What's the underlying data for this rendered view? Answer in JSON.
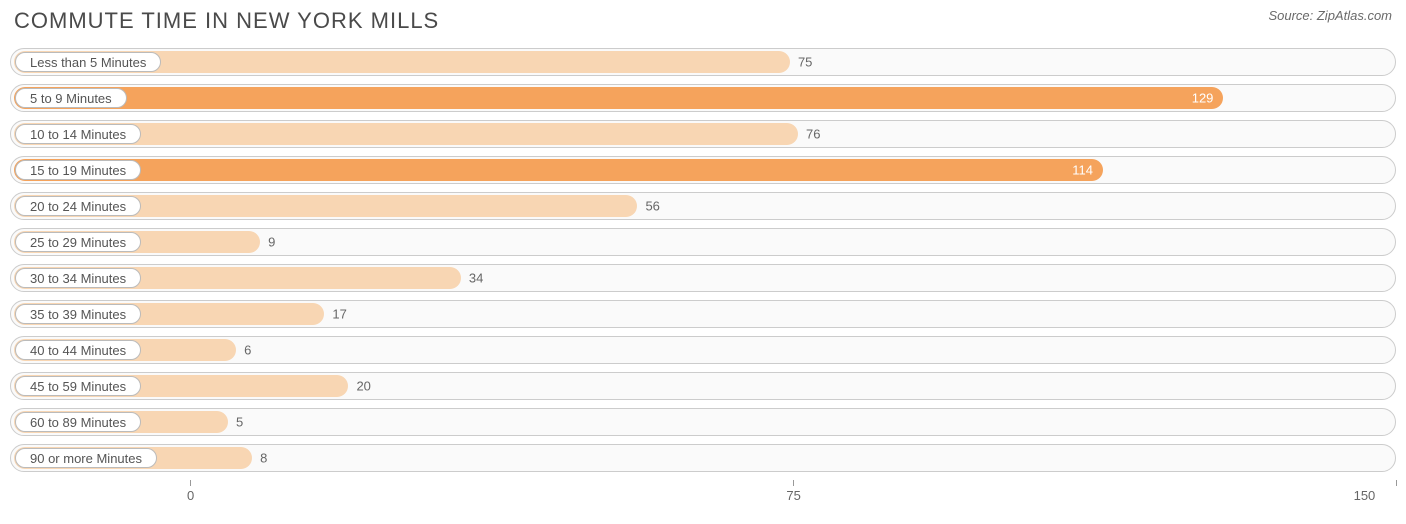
{
  "title": "COMMUTE TIME IN NEW YORK MILLS",
  "source": "Source: ZipAtlas.com",
  "chart": {
    "type": "bar-horizontal",
    "background_color": "#ffffff",
    "row_border_color": "#cccccc",
    "row_background": "#fafafa",
    "bar_color_light": "#f8d6b3",
    "bar_color_dark": "#f5a35c",
    "pill_background": "#ffffff",
    "pill_border": "#bbbbbb",
    "text_color": "#666666",
    "value_label_inside_color": "#ffffff",
    "title_color": "#4a4a4a",
    "title_fontsize": 22,
    "label_fontsize": 13,
    "bar_origin_pct": 13.0,
    "xaxis": {
      "min": 0,
      "max": 150,
      "ticks": [
        0,
        75,
        150
      ]
    },
    "rows": [
      {
        "label": "Less than 5 Minutes",
        "value": 75,
        "shade": "light",
        "label_inside": false
      },
      {
        "label": "5 to 9 Minutes",
        "value": 129,
        "shade": "dark",
        "label_inside": true
      },
      {
        "label": "10 to 14 Minutes",
        "value": 76,
        "shade": "light",
        "label_inside": false
      },
      {
        "label": "15 to 19 Minutes",
        "value": 114,
        "shade": "dark",
        "label_inside": true
      },
      {
        "label": "20 to 24 Minutes",
        "value": 56,
        "shade": "light",
        "label_inside": false
      },
      {
        "label": "25 to 29 Minutes",
        "value": 9,
        "shade": "light",
        "label_inside": false
      },
      {
        "label": "30 to 34 Minutes",
        "value": 34,
        "shade": "light",
        "label_inside": false
      },
      {
        "label": "35 to 39 Minutes",
        "value": 17,
        "shade": "light",
        "label_inside": false
      },
      {
        "label": "40 to 44 Minutes",
        "value": 6,
        "shade": "light",
        "label_inside": false
      },
      {
        "label": "45 to 59 Minutes",
        "value": 20,
        "shade": "light",
        "label_inside": false
      },
      {
        "label": "60 to 89 Minutes",
        "value": 5,
        "shade": "light",
        "label_inside": false
      },
      {
        "label": "90 or more Minutes",
        "value": 8,
        "shade": "light",
        "label_inside": false
      }
    ]
  }
}
